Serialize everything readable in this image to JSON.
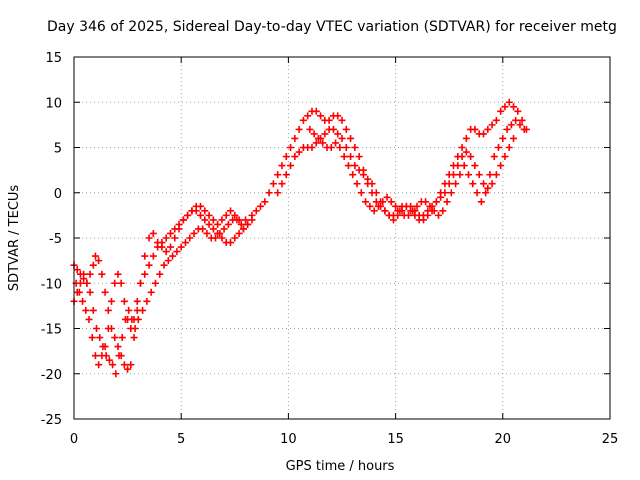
{
  "chart_data": {
    "type": "scatter",
    "title": "Day 346 of 2025, Sidereal Day-to-day VTEC variation (SDTVAR) for receiver metg",
    "xlabel": "GPS time / hours",
    "ylabel": "SDTVAR / TECUs",
    "xlim": [
      0,
      25
    ],
    "ylim": [
      -25,
      15
    ],
    "xticks": [
      "0",
      "5",
      "10",
      "15",
      "20",
      "25"
    ],
    "yticks": [
      "15",
      "10",
      "5",
      "0",
      "-5",
      "-10",
      "-15",
      "-20",
      "-25"
    ],
    "grid": true,
    "marker": "+",
    "color": "#ff0000",
    "series": [
      {
        "x": [
          0.0,
          0.15,
          0.3,
          0.45,
          0.6,
          0.75,
          0.9,
          1.0,
          1.15,
          1.3,
          1.45,
          1.6,
          1.75,
          1.9,
          2.05,
          2.2,
          2.35,
          2.5,
          2.65,
          2.8,
          2.95,
          3.1,
          3.3,
          3.5,
          3.7,
          3.9,
          4.1,
          4.3,
          4.5,
          4.7,
          4.9,
          5.1,
          5.3,
          5.5,
          5.7,
          5.9,
          6.1,
          6.3,
          6.5,
          6.7,
          6.9,
          7.1,
          7.3,
          7.5,
          7.7,
          7.9,
          8.1
        ],
        "y": [
          -8,
          -8.5,
          -9,
          -9.5,
          -10,
          -9,
          -8,
          -7,
          -7.5,
          -9,
          -11,
          -13,
          -15,
          -16,
          -17,
          -18,
          -19,
          -19.5,
          -19,
          -16,
          -13,
          -10,
          -7,
          -5,
          -4.5,
          -5.5,
          -6,
          -6.5,
          -6,
          -5,
          -4,
          -3,
          -2.5,
          -2,
          -1.5,
          -1.5,
          -2,
          -2.5,
          -3,
          -3.5,
          -3,
          -2.5,
          -2,
          -2.5,
          -3,
          -4,
          -3.5
        ]
      },
      {
        "x": [
          0.0,
          0.15,
          0.3,
          0.45,
          0.6,
          0.75,
          0.9,
          1.05,
          1.2,
          1.35,
          1.5,
          1.65,
          1.8,
          1.95,
          2.1,
          2.25,
          2.4,
          2.55,
          2.7,
          2.85,
          3.0,
          3.2,
          3.4,
          3.6,
          3.8,
          4.0,
          4.2,
          4.4,
          4.6,
          4.8,
          5.0,
          5.2,
          5.4,
          5.6,
          5.8,
          6.0,
          6.2,
          6.4,
          6.6,
          6.8,
          7.0,
          7.2,
          7.4,
          7.6,
          7.8,
          8.0
        ],
        "y": [
          -12,
          -11,
          -10,
          -9,
          -10,
          -11,
          -13,
          -15,
          -16,
          -17,
          -18,
          -18.5,
          -19,
          -20,
          -18,
          -16,
          -14,
          -13,
          -14,
          -15,
          -14,
          -13,
          -12,
          -11,
          -10,
          -9,
          -8,
          -7.5,
          -7,
          -6.5,
          -6,
          -5.5,
          -5,
          -4.5,
          -4,
          -4,
          -4.5,
          -5,
          -5,
          -4.5,
          -4,
          -3.5,
          -3,
          -3,
          -3.5,
          -3
        ]
      },
      {
        "x": [
          0.1,
          0.25,
          0.4,
          0.55,
          0.7,
          0.85,
          1.0,
          1.15,
          1.3,
          1.45,
          1.6,
          1.75,
          1.9,
          2.05,
          2.2,
          2.35,
          2.5,
          2.65,
          2.8,
          2.95,
          3.1,
          3.3,
          3.5,
          3.7,
          3.9,
          4.1,
          4.3,
          4.5,
          4.7,
          4.9,
          5.1,
          5.3,
          5.5,
          5.7,
          5.9,
          6.1,
          6.3,
          6.5,
          6.7,
          6.9,
          7.1,
          7.3,
          7.5,
          7.7,
          7.9,
          8.1,
          8.3
        ],
        "y": [
          -10,
          -11,
          -12,
          -13,
          -14,
          -16,
          -18,
          -19,
          -18,
          -17,
          -15,
          -12,
          -10,
          -9,
          -10,
          -12,
          -14,
          -15,
          -14,
          -12,
          -10,
          -9,
          -8,
          -7,
          -6,
          -5.5,
          -5,
          -4.5,
          -4,
          -3.5,
          -3,
          -2.5,
          -2,
          -2,
          -2.5,
          -3,
          -3.5,
          -4,
          -4.5,
          -5,
          -5.5,
          -5.5,
          -5,
          -4.5,
          -4,
          -3.5,
          -3
        ]
      },
      {
        "x": [
          8.3,
          8.5,
          8.7,
          8.9,
          9.1,
          9.3,
          9.5,
          9.7,
          9.9,
          10.1,
          10.3,
          10.5,
          10.7,
          10.9,
          11.1,
          11.3,
          11.5,
          11.7,
          11.9,
          12.1,
          12.3,
          12.5,
          12.7,
          12.9,
          13.1,
          13.3,
          13.5,
          13.7,
          13.9,
          14.1,
          14.3,
          14.5,
          14.7,
          14.9,
          15.1,
          15.3,
          15.5,
          15.7,
          15.9,
          16.1,
          16.3,
          16.5,
          16.7,
          16.9,
          17.1,
          17.3,
          17.5,
          17.7,
          17.9,
          18.1,
          18.3,
          18.5,
          18.7,
          18.9,
          19.1,
          19.3,
          19.5,
          19.7,
          19.9,
          20.1,
          20.3,
          20.5,
          20.7,
          20.9,
          21.1
        ],
        "y": [
          -2.5,
          -2,
          -1.5,
          -1,
          0,
          1,
          2,
          3,
          4,
          5,
          6,
          7,
          8,
          8.5,
          9,
          9,
          8.5,
          8,
          8,
          8.5,
          8.5,
          8,
          7,
          6,
          5,
          4,
          2.5,
          1,
          0,
          -1,
          -1.5,
          -2,
          -2.5,
          -2.5,
          -2,
          -1.5,
          -1.5,
          -2,
          -2.5,
          -3,
          -3,
          -2.5,
          -2,
          -1,
          0,
          1,
          2,
          3,
          4,
          5,
          6,
          7,
          7,
          6.5,
          6.5,
          7,
          7.5,
          8,
          9,
          9.5,
          10,
          9.5,
          9,
          8,
          7
        ]
      },
      {
        "x": [
          9.5,
          9.7,
          9.9,
          10.1,
          10.3,
          10.5,
          10.7,
          10.9,
          11.1,
          11.3,
          11.5,
          11.7,
          11.9,
          12.1,
          12.3,
          12.5,
          12.7,
          12.9,
          13.1,
          13.3,
          13.5,
          13.7,
          13.9,
          14.1,
          14.3,
          14.5,
          14.7,
          14.9,
          15.1,
          15.3,
          15.5,
          15.7,
          15.9,
          16.1,
          16.3,
          16.5,
          16.7,
          16.9,
          17.1,
          17.3,
          17.5,
          17.7,
          17.9,
          18.1,
          18.3,
          18.5,
          18.7,
          18.9,
          19.1,
          19.3,
          19.5,
          19.7,
          19.9,
          20.1,
          20.3,
          20.5
        ],
        "y": [
          0,
          1,
          2,
          3,
          4,
          4.5,
          5,
          5,
          5,
          5.5,
          6,
          6.5,
          7,
          7,
          6.5,
          6,
          5,
          4,
          3,
          2.5,
          2,
          1.5,
          1,
          0,
          -1,
          -2,
          -2.5,
          -3,
          -2.5,
          -2,
          -1.5,
          -1.5,
          -2,
          -2.5,
          -2.5,
          -2,
          -1.5,
          -1,
          -0.5,
          0,
          1,
          2,
          3,
          4,
          4.5,
          4,
          3,
          2,
          1,
          0.5,
          1,
          2,
          3,
          4,
          5,
          6
        ]
      },
      {
        "x": [
          11.0,
          11.2,
          11.4,
          11.6,
          11.8,
          12.0,
          12.2,
          12.4,
          12.6,
          12.8,
          13.0,
          13.2,
          13.4,
          13.6,
          13.8,
          14.0,
          14.2,
          14.4,
          14.6,
          14.8,
          15.0,
          15.2,
          15.4,
          15.6,
          15.8,
          16.0,
          16.2,
          16.4,
          16.6,
          16.8,
          17.0,
          17.2,
          17.4,
          17.6,
          17.8,
          18.0,
          18.2,
          18.4,
          18.6,
          18.8,
          19.0,
          19.2,
          19.4,
          19.6,
          19.8,
          20.0,
          20.2,
          20.4,
          20.6,
          20.8,
          21.0
        ],
        "y": [
          7,
          6.5,
          6,
          5.5,
          5,
          5,
          5.5,
          5,
          4,
          3,
          2,
          1,
          0,
          -1,
          -1.5,
          -2,
          -1.5,
          -1,
          -0.5,
          -1,
          -1.5,
          -2,
          -2.5,
          -2.5,
          -2,
          -1.5,
          -1,
          -1,
          -1.5,
          -2,
          -2.5,
          -2,
          -1,
          0,
          1,
          2,
          3,
          2,
          1,
          0,
          -1,
          0,
          2,
          4,
          5,
          6,
          7,
          7.5,
          8,
          7.5,
          7
        ]
      }
    ]
  }
}
